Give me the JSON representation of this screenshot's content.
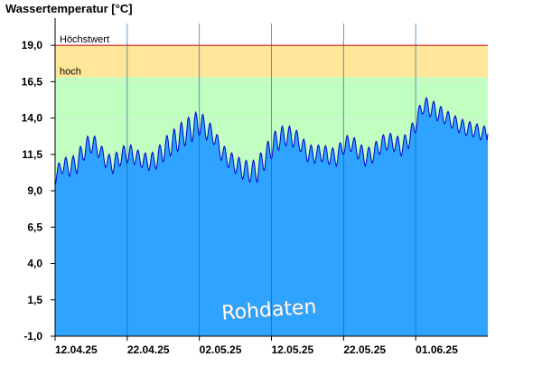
{
  "chart_data": {
    "type": "area",
    "title": "Wassertemperatur [°C]",
    "xlabel": "",
    "ylabel": "",
    "ylim": [
      -1.0,
      20.5
    ],
    "x_range": [
      "2025-04-12",
      "2025-06-11"
    ],
    "y_ticks": [
      "19,0",
      "16,5",
      "14,0",
      "11,5",
      "9,0",
      "6,5",
      "4,0",
      "1,5",
      "-1,0"
    ],
    "y_tick_values": [
      19.0,
      16.5,
      14.0,
      11.5,
      9.0,
      6.5,
      4.0,
      1.5,
      -1.0
    ],
    "x_ticks": [
      "12.04.25",
      "22.04.25",
      "02.05.25",
      "12.05.25",
      "22.05.25",
      "01.06.25"
    ],
    "x_tick_dates": [
      "2025-04-12",
      "2025-04-22",
      "2025-05-02",
      "2025-05-12",
      "2025-05-22",
      "2025-06-01"
    ],
    "grid": true,
    "bands": [
      {
        "label": "Höchstwert",
        "from": 19.0,
        "to": 20.5,
        "color": "#ffffff"
      },
      {
        "label": "hoch",
        "from": 16.8,
        "to": 19.0,
        "color": "#ffe699"
      },
      {
        "label": "",
        "from": -1.0,
        "to": 16.8,
        "color": "#c0ffc0"
      }
    ],
    "threshold_line": {
      "value": 19.0,
      "color": "#cc0000"
    },
    "area_color": "#2ea3ff",
    "line_color": "#0000cc",
    "watermark": "Rohdaten",
    "series": [
      {
        "name": "",
        "dates": [
          "2025-04-12",
          "2025-04-13",
          "2025-04-14",
          "2025-04-15",
          "2025-04-16",
          "2025-04-17",
          "2025-04-18",
          "2025-04-19",
          "2025-04-20",
          "2025-04-21",
          "2025-04-22",
          "2025-04-23",
          "2025-04-24",
          "2025-04-25",
          "2025-04-26",
          "2025-04-27",
          "2025-04-28",
          "2025-04-29",
          "2025-04-30",
          "2025-05-01",
          "2025-05-02",
          "2025-05-03",
          "2025-05-04",
          "2025-05-05",
          "2025-05-06",
          "2025-05-07",
          "2025-05-08",
          "2025-05-09",
          "2025-05-10",
          "2025-05-11",
          "2025-05-12",
          "2025-05-13",
          "2025-05-14",
          "2025-05-15",
          "2025-05-16",
          "2025-05-17",
          "2025-05-18",
          "2025-05-19",
          "2025-05-20",
          "2025-05-21",
          "2025-05-22",
          "2025-05-23",
          "2025-05-24",
          "2025-05-25",
          "2025-05-26",
          "2025-05-27",
          "2025-05-28",
          "2025-05-29",
          "2025-05-30",
          "2025-05-31",
          "2025-06-01",
          "2025-06-02",
          "2025-06-03",
          "2025-06-04",
          "2025-06-05",
          "2025-06-06",
          "2025-06-07",
          "2025-06-08",
          "2025-06-09",
          "2025-06-10",
          "2025-06-11"
        ],
        "values": [
          9.9,
          10.8,
          10.6,
          10.9,
          11.8,
          12.3,
          11.9,
          11.1,
          10.8,
          11.3,
          11.6,
          11.4,
          11.1,
          11.0,
          11.1,
          11.8,
          12.2,
          12.6,
          13.0,
          13.3,
          13.7,
          13.2,
          12.8,
          11.7,
          11.2,
          10.8,
          10.5,
          10.3,
          10.4,
          11.2,
          12.0,
          12.6,
          12.8,
          12.7,
          12.3,
          11.6,
          11.5,
          11.6,
          11.4,
          11.3,
          12.1,
          12.3,
          11.8,
          11.3,
          11.5,
          12.1,
          12.4,
          12.3,
          12.0,
          12.5,
          13.6,
          14.9,
          14.7,
          14.4,
          14.1,
          13.8,
          13.5,
          13.3,
          13.2,
          13.0,
          12.9
        ],
        "amplitude": [
          0.5,
          0.6,
          0.6,
          0.7,
          0.7,
          0.7,
          0.6,
          0.5,
          0.6,
          0.6,
          0.7,
          0.6,
          0.5,
          0.6,
          0.6,
          0.8,
          0.8,
          0.9,
          0.9,
          0.9,
          0.9,
          0.7,
          0.6,
          0.6,
          0.6,
          0.6,
          0.7,
          0.7,
          0.8,
          0.8,
          0.8,
          0.8,
          0.7,
          0.7,
          0.6,
          0.6,
          0.6,
          0.6,
          0.6,
          0.6,
          0.6,
          0.6,
          0.6,
          0.6,
          0.6,
          0.6,
          0.6,
          0.6,
          0.6,
          0.6,
          0.6,
          0.6,
          0.6,
          0.6,
          0.5,
          0.5,
          0.5,
          0.5,
          0.5,
          0.5,
          0.5
        ]
      }
    ]
  }
}
